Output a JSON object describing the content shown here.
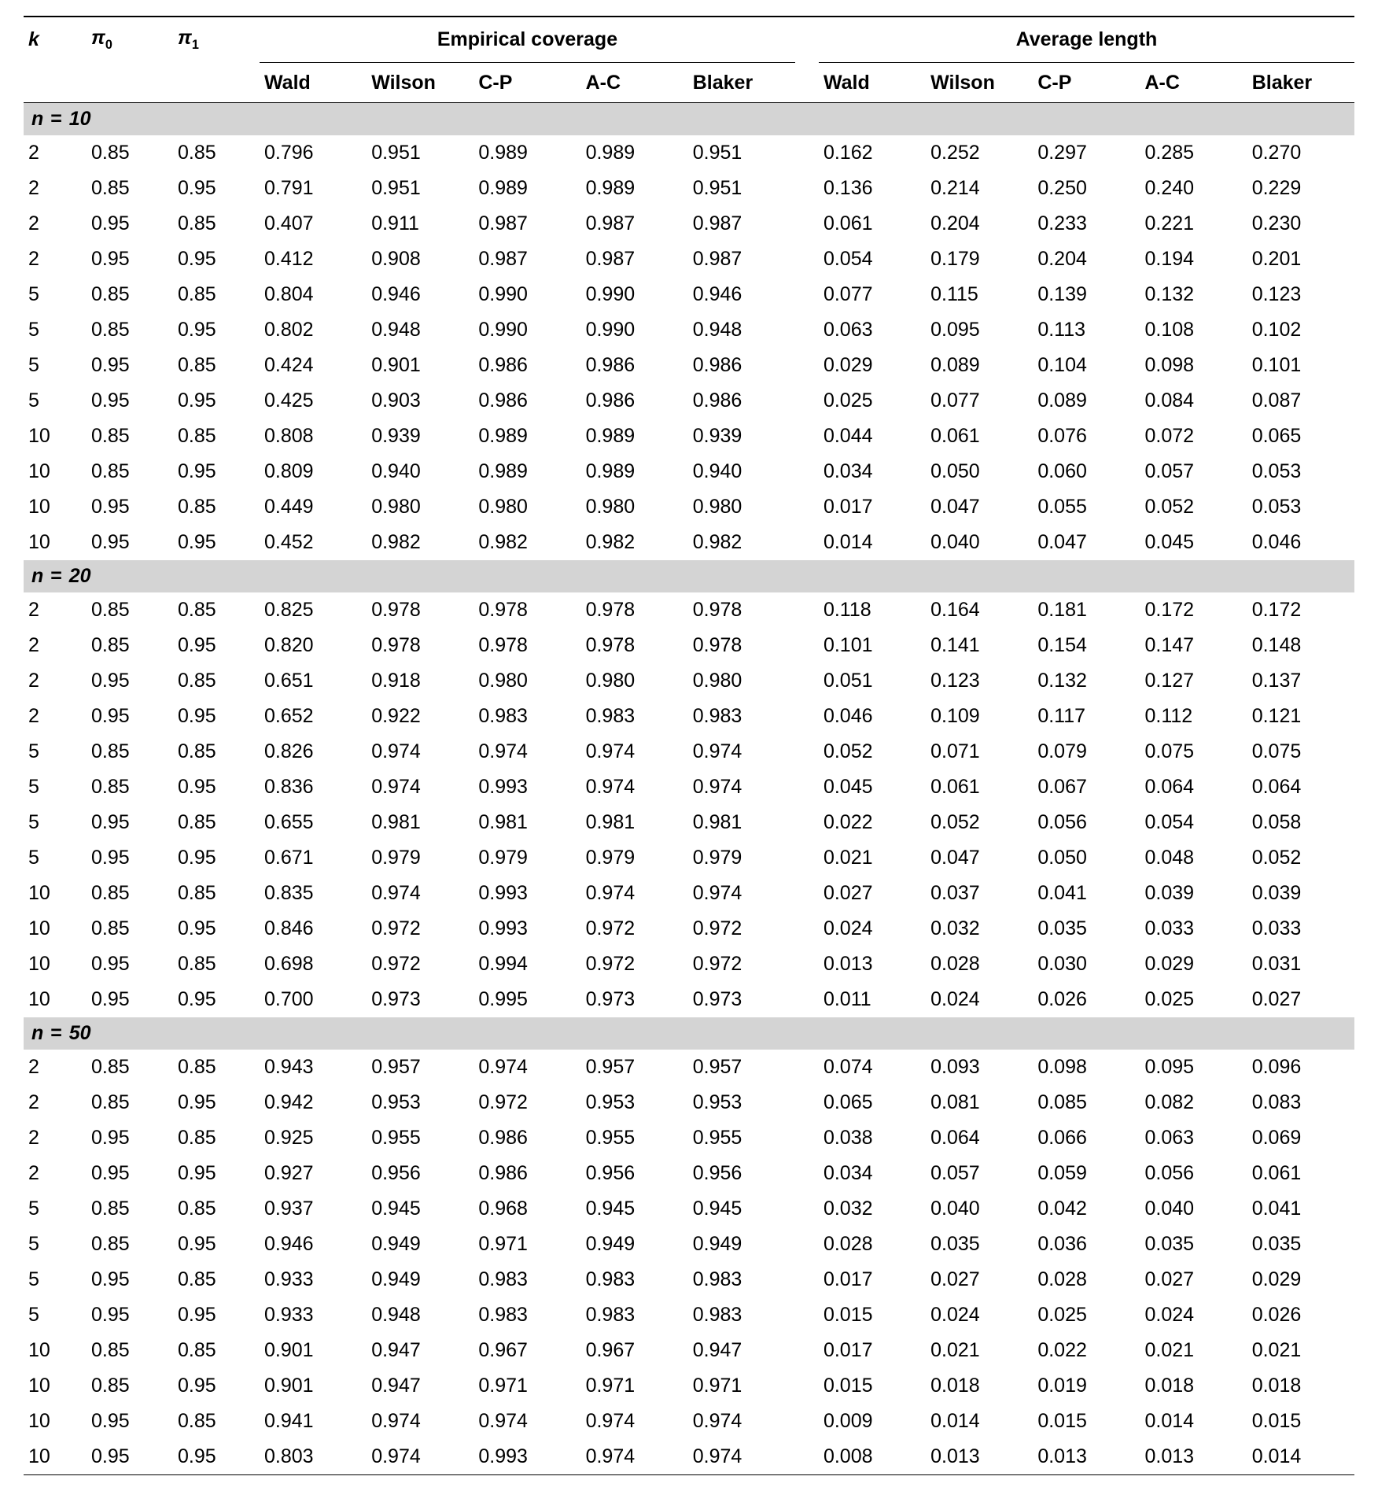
{
  "headers": {
    "k": "k",
    "pi0_prefix": "π",
    "pi0_sub": "0",
    "pi1_prefix": "π",
    "pi1_sub": "1",
    "group_coverage": "Empirical coverage",
    "group_length": "Average length",
    "methods": [
      "Wald",
      "Wilson",
      "C-P",
      "A-C",
      "Blaker"
    ]
  },
  "sections": [
    {
      "label_prefix": "n",
      "label_value": "10",
      "rows": [
        {
          "k": "2",
          "pi0": "0.85",
          "pi1": "0.85",
          "cov": [
            "0.796",
            "0.951",
            "0.989",
            "0.989",
            "0.951"
          ],
          "len": [
            "0.162",
            "0.252",
            "0.297",
            "0.285",
            "0.270"
          ]
        },
        {
          "k": "2",
          "pi0": "0.85",
          "pi1": "0.95",
          "cov": [
            "0.791",
            "0.951",
            "0.989",
            "0.989",
            "0.951"
          ],
          "len": [
            "0.136",
            "0.214",
            "0.250",
            "0.240",
            "0.229"
          ]
        },
        {
          "k": "2",
          "pi0": "0.95",
          "pi1": "0.85",
          "cov": [
            "0.407",
            "0.911",
            "0.987",
            "0.987",
            "0.987"
          ],
          "len": [
            "0.061",
            "0.204",
            "0.233",
            "0.221",
            "0.230"
          ]
        },
        {
          "k": "2",
          "pi0": "0.95",
          "pi1": "0.95",
          "cov": [
            "0.412",
            "0.908",
            "0.987",
            "0.987",
            "0.987"
          ],
          "len": [
            "0.054",
            "0.179",
            "0.204",
            "0.194",
            "0.201"
          ]
        },
        {
          "k": "5",
          "pi0": "0.85",
          "pi1": "0.85",
          "cov": [
            "0.804",
            "0.946",
            "0.990",
            "0.990",
            "0.946"
          ],
          "len": [
            "0.077",
            "0.115",
            "0.139",
            "0.132",
            "0.123"
          ]
        },
        {
          "k": "5",
          "pi0": "0.85",
          "pi1": "0.95",
          "cov": [
            "0.802",
            "0.948",
            "0.990",
            "0.990",
            "0.948"
          ],
          "len": [
            "0.063",
            "0.095",
            "0.113",
            "0.108",
            "0.102"
          ]
        },
        {
          "k": "5",
          "pi0": "0.95",
          "pi1": "0.85",
          "cov": [
            "0.424",
            "0.901",
            "0.986",
            "0.986",
            "0.986"
          ],
          "len": [
            "0.029",
            "0.089",
            "0.104",
            "0.098",
            "0.101"
          ]
        },
        {
          "k": "5",
          "pi0": "0.95",
          "pi1": "0.95",
          "cov": [
            "0.425",
            "0.903",
            "0.986",
            "0.986",
            "0.986"
          ],
          "len": [
            "0.025",
            "0.077",
            "0.089",
            "0.084",
            "0.087"
          ]
        },
        {
          "k": "10",
          "pi0": "0.85",
          "pi1": "0.85",
          "cov": [
            "0.808",
            "0.939",
            "0.989",
            "0.989",
            "0.939"
          ],
          "len": [
            "0.044",
            "0.061",
            "0.076",
            "0.072",
            "0.065"
          ]
        },
        {
          "k": "10",
          "pi0": "0.85",
          "pi1": "0.95",
          "cov": [
            "0.809",
            "0.940",
            "0.989",
            "0.989",
            "0.940"
          ],
          "len": [
            "0.034",
            "0.050",
            "0.060",
            "0.057",
            "0.053"
          ]
        },
        {
          "k": "10",
          "pi0": "0.95",
          "pi1": "0.85",
          "cov": [
            "0.449",
            "0.980",
            "0.980",
            "0.980",
            "0.980"
          ],
          "len": [
            "0.017",
            "0.047",
            "0.055",
            "0.052",
            "0.053"
          ]
        },
        {
          "k": "10",
          "pi0": "0.95",
          "pi1": "0.95",
          "cov": [
            "0.452",
            "0.982",
            "0.982",
            "0.982",
            "0.982"
          ],
          "len": [
            "0.014",
            "0.040",
            "0.047",
            "0.045",
            "0.046"
          ]
        }
      ]
    },
    {
      "label_prefix": "n",
      "label_value": "20",
      "rows": [
        {
          "k": "2",
          "pi0": "0.85",
          "pi1": "0.85",
          "cov": [
            "0.825",
            "0.978",
            "0.978",
            "0.978",
            "0.978"
          ],
          "len": [
            "0.118",
            "0.164",
            "0.181",
            "0.172",
            "0.172"
          ]
        },
        {
          "k": "2",
          "pi0": "0.85",
          "pi1": "0.95",
          "cov": [
            "0.820",
            "0.978",
            "0.978",
            "0.978",
            "0.978"
          ],
          "len": [
            "0.101",
            "0.141",
            "0.154",
            "0.147",
            "0.148"
          ]
        },
        {
          "k": "2",
          "pi0": "0.95",
          "pi1": "0.85",
          "cov": [
            "0.651",
            "0.918",
            "0.980",
            "0.980",
            "0.980"
          ],
          "len": [
            "0.051",
            "0.123",
            "0.132",
            "0.127",
            "0.137"
          ]
        },
        {
          "k": "2",
          "pi0": "0.95",
          "pi1": "0.95",
          "cov": [
            "0.652",
            "0.922",
            "0.983",
            "0.983",
            "0.983"
          ],
          "len": [
            "0.046",
            "0.109",
            "0.117",
            "0.112",
            "0.121"
          ]
        },
        {
          "k": "5",
          "pi0": "0.85",
          "pi1": "0.85",
          "cov": [
            "0.826",
            "0.974",
            "0.974",
            "0.974",
            "0.974"
          ],
          "len": [
            "0.052",
            "0.071",
            "0.079",
            "0.075",
            "0.075"
          ]
        },
        {
          "k": "5",
          "pi0": "0.85",
          "pi1": "0.95",
          "cov": [
            "0.836",
            "0.974",
            "0.993",
            "0.974",
            "0.974"
          ],
          "len": [
            "0.045",
            "0.061",
            "0.067",
            "0.064",
            "0.064"
          ]
        },
        {
          "k": "5",
          "pi0": "0.95",
          "pi1": "0.85",
          "cov": [
            "0.655",
            "0.981",
            "0.981",
            "0.981",
            "0.981"
          ],
          "len": [
            "0.022",
            "0.052",
            "0.056",
            "0.054",
            "0.058"
          ]
        },
        {
          "k": "5",
          "pi0": "0.95",
          "pi1": "0.95",
          "cov": [
            "0.671",
            "0.979",
            "0.979",
            "0.979",
            "0.979"
          ],
          "len": [
            "0.021",
            "0.047",
            "0.050",
            "0.048",
            "0.052"
          ]
        },
        {
          "k": "10",
          "pi0": "0.85",
          "pi1": "0.85",
          "cov": [
            "0.835",
            "0.974",
            "0.993",
            "0.974",
            "0.974"
          ],
          "len": [
            "0.027",
            "0.037",
            "0.041",
            "0.039",
            "0.039"
          ]
        },
        {
          "k": "10",
          "pi0": "0.85",
          "pi1": "0.95",
          "cov": [
            "0.846",
            "0.972",
            "0.993",
            "0.972",
            "0.972"
          ],
          "len": [
            "0.024",
            "0.032",
            "0.035",
            "0.033",
            "0.033"
          ]
        },
        {
          "k": "10",
          "pi0": "0.95",
          "pi1": "0.85",
          "cov": [
            "0.698",
            "0.972",
            "0.994",
            "0.972",
            "0.972"
          ],
          "len": [
            "0.013",
            "0.028",
            "0.030",
            "0.029",
            "0.031"
          ]
        },
        {
          "k": "10",
          "pi0": "0.95",
          "pi1": "0.95",
          "cov": [
            "0.700",
            "0.973",
            "0.995",
            "0.973",
            "0.973"
          ],
          "len": [
            "0.011",
            "0.024",
            "0.026",
            "0.025",
            "0.027"
          ]
        }
      ]
    },
    {
      "label_prefix": "n",
      "label_value": "50",
      "rows": [
        {
          "k": "2",
          "pi0": "0.85",
          "pi1": "0.85",
          "cov": [
            "0.943",
            "0.957",
            "0.974",
            "0.957",
            "0.957"
          ],
          "len": [
            "0.074",
            "0.093",
            "0.098",
            "0.095",
            "0.096"
          ]
        },
        {
          "k": "2",
          "pi0": "0.85",
          "pi1": "0.95",
          "cov": [
            "0.942",
            "0.953",
            "0.972",
            "0.953",
            "0.953"
          ],
          "len": [
            "0.065",
            "0.081",
            "0.085",
            "0.082",
            "0.083"
          ]
        },
        {
          "k": "2",
          "pi0": "0.95",
          "pi1": "0.85",
          "cov": [
            "0.925",
            "0.955",
            "0.986",
            "0.955",
            "0.955"
          ],
          "len": [
            "0.038",
            "0.064",
            "0.066",
            "0.063",
            "0.069"
          ]
        },
        {
          "k": "2",
          "pi0": "0.95",
          "pi1": "0.95",
          "cov": [
            "0.927",
            "0.956",
            "0.986",
            "0.956",
            "0.956"
          ],
          "len": [
            "0.034",
            "0.057",
            "0.059",
            "0.056",
            "0.061"
          ]
        },
        {
          "k": "5",
          "pi0": "0.85",
          "pi1": "0.85",
          "cov": [
            "0.937",
            "0.945",
            "0.968",
            "0.945",
            "0.945"
          ],
          "len": [
            "0.032",
            "0.040",
            "0.042",
            "0.040",
            "0.041"
          ]
        },
        {
          "k": "5",
          "pi0": "0.85",
          "pi1": "0.95",
          "cov": [
            "0.946",
            "0.949",
            "0.971",
            "0.949",
            "0.949"
          ],
          "len": [
            "0.028",
            "0.035",
            "0.036",
            "0.035",
            "0.035"
          ]
        },
        {
          "k": "5",
          "pi0": "0.95",
          "pi1": "0.85",
          "cov": [
            "0.933",
            "0.949",
            "0.983",
            "0.983",
            "0.983"
          ],
          "len": [
            "0.017",
            "0.027",
            "0.028",
            "0.027",
            "0.029"
          ]
        },
        {
          "k": "5",
          "pi0": "0.95",
          "pi1": "0.95",
          "cov": [
            "0.933",
            "0.948",
            "0.983",
            "0.983",
            "0.983"
          ],
          "len": [
            "0.015",
            "0.024",
            "0.025",
            "0.024",
            "0.026"
          ]
        },
        {
          "k": "10",
          "pi0": "0.85",
          "pi1": "0.85",
          "cov": [
            "0.901",
            "0.947",
            "0.967",
            "0.967",
            "0.947"
          ],
          "len": [
            "0.017",
            "0.021",
            "0.022",
            "0.021",
            "0.021"
          ]
        },
        {
          "k": "10",
          "pi0": "0.85",
          "pi1": "0.95",
          "cov": [
            "0.901",
            "0.947",
            "0.971",
            "0.971",
            "0.971"
          ],
          "len": [
            "0.015",
            "0.018",
            "0.019",
            "0.018",
            "0.018"
          ]
        },
        {
          "k": "10",
          "pi0": "0.95",
          "pi1": "0.85",
          "cov": [
            "0.941",
            "0.974",
            "0.974",
            "0.974",
            "0.974"
          ],
          "len": [
            "0.009",
            "0.014",
            "0.015",
            "0.014",
            "0.015"
          ]
        },
        {
          "k": "10",
          "pi0": "0.95",
          "pi1": "0.95",
          "cov": [
            "0.803",
            "0.974",
            "0.993",
            "0.974",
            "0.974"
          ],
          "len": [
            "0.008",
            "0.013",
            "0.013",
            "0.013",
            "0.014"
          ]
        }
      ]
    }
  ]
}
